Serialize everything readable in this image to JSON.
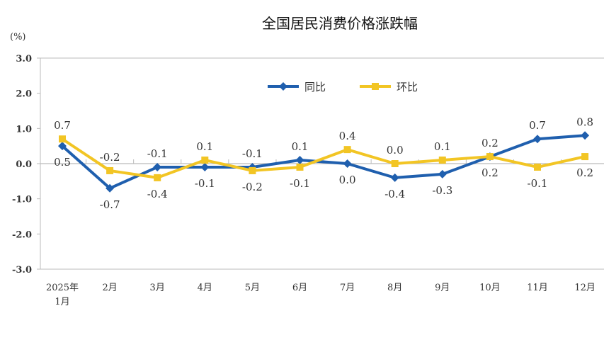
{
  "chart_data": {
    "type": "line",
    "title": "全国居民消费价格涨跌幅",
    "ylabel": "(%)",
    "xlabel": "",
    "ylim": [
      -3.0,
      3.0
    ],
    "yticks": [
      "3.0",
      "2.0",
      "1.0",
      "0.0",
      "-1.0",
      "-2.0",
      "-3.0"
    ],
    "ytick_values": [
      3,
      2,
      1,
      0,
      -1,
      -2,
      -3
    ],
    "categories": [
      "2025年|1月",
      "2月",
      "3月",
      "4月",
      "5月",
      "6月",
      "7月",
      "8月",
      "9月",
      "10月",
      "11月",
      "12月"
    ],
    "legend_position": "top-center",
    "series": [
      {
        "name": "同比",
        "color": "#1f5fae",
        "values": [
          0.5,
          -0.7,
          -0.1,
          -0.1,
          -0.1,
          0.1,
          0.0,
          -0.4,
          -0.3,
          0.2,
          0.7,
          0.8
        ],
        "labels": [
          "0.5",
          "-0.7",
          "-0.1",
          "-0.1",
          "-0.1",
          "0.1",
          "0.0",
          "-0.4",
          "-0.3",
          "0.2",
          "0.7",
          "0.8"
        ],
        "label_side": [
          "below",
          "below",
          "above",
          "below",
          "above",
          "above",
          "below",
          "below",
          "below",
          "below",
          "above",
          "above"
        ]
      },
      {
        "name": "环比",
        "color": "#f2c524",
        "values": [
          0.7,
          -0.2,
          -0.4,
          0.1,
          -0.2,
          -0.1,
          0.4,
          0.0,
          0.1,
          0.2,
          -0.1,
          0.2
        ],
        "labels": [
          "0.7",
          "-0.2",
          "-0.4",
          "0.1",
          "-0.2",
          "-0.1",
          "0.4",
          "0.0",
          "0.1",
          "0.2",
          "-0.1",
          "0.2"
        ],
        "label_side": [
          "above",
          "above",
          "below",
          "above",
          "below",
          "below",
          "above",
          "above",
          "above",
          "above",
          "below",
          "below"
        ]
      }
    ]
  }
}
